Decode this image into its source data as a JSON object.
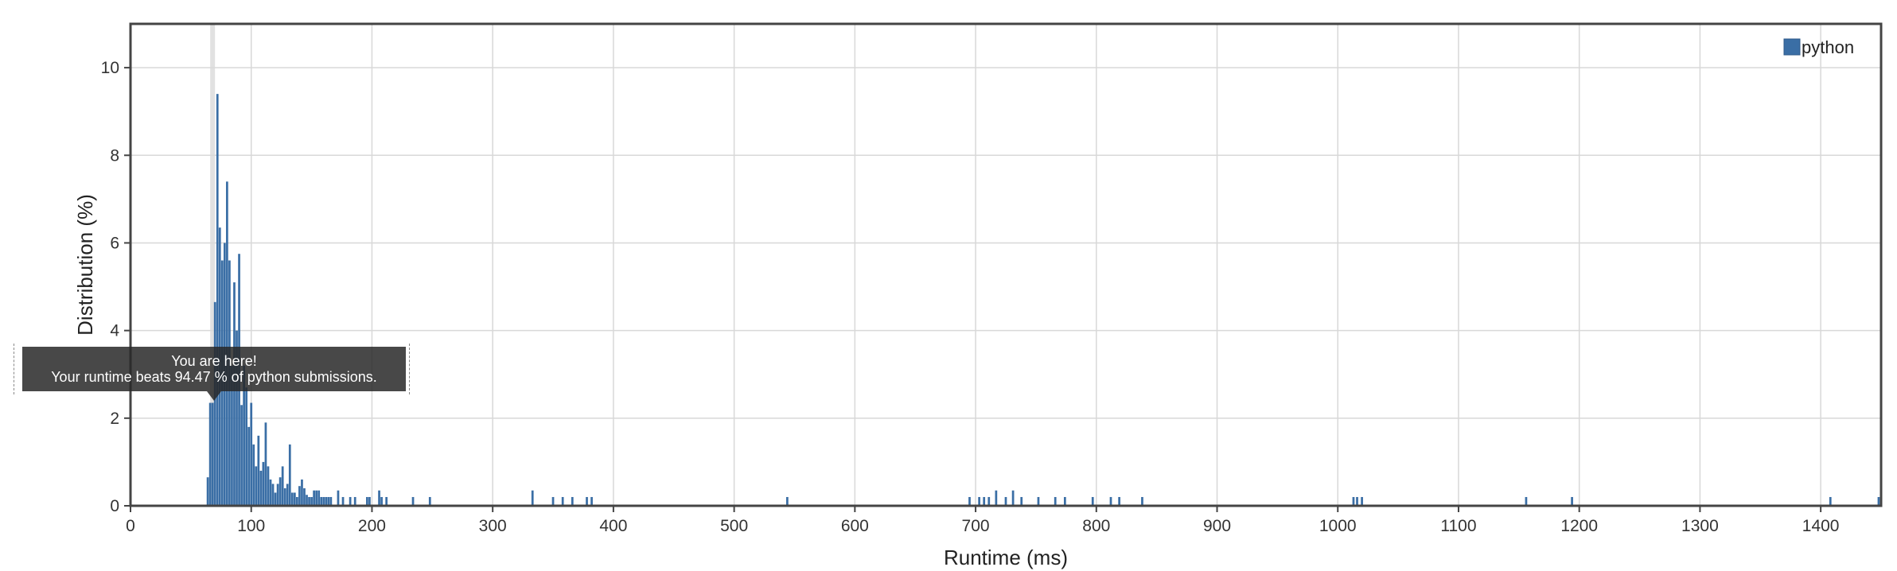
{
  "chart_data": {
    "type": "bar",
    "xlabel": "Runtime (ms)",
    "ylabel": "Distribution (%)",
    "xlim": [
      0,
      1450
    ],
    "ylim": [
      0,
      11
    ],
    "xticks": [
      "0",
      "100",
      "200",
      "300",
      "400",
      "500",
      "600",
      "700",
      "800",
      "900",
      "1000",
      "1100",
      "1200",
      "1300",
      "1400"
    ],
    "yticks": [
      "0",
      "2",
      "4",
      "6",
      "8",
      "10"
    ],
    "grid": true,
    "legend_position": "top-right",
    "series": [
      {
        "name": "python",
        "color": "#3a6ea5",
        "points": [
          [
            64,
            0.65
          ],
          [
            66,
            2.35
          ],
          [
            68,
            2.35
          ],
          [
            70,
            4.65
          ],
          [
            72,
            9.4
          ],
          [
            74,
            6.35
          ],
          [
            76,
            5.6
          ],
          [
            78,
            6.0
          ],
          [
            80,
            7.4
          ],
          [
            82,
            5.6
          ],
          [
            84,
            3.2
          ],
          [
            86,
            5.1
          ],
          [
            88,
            4.0
          ],
          [
            90,
            5.75
          ],
          [
            92,
            2.3
          ],
          [
            94,
            3.2
          ],
          [
            96,
            2.7
          ],
          [
            98,
            1.8
          ],
          [
            100,
            2.35
          ],
          [
            102,
            1.4
          ],
          [
            104,
            0.9
          ],
          [
            106,
            1.6
          ],
          [
            108,
            0.8
          ],
          [
            110,
            1.0
          ],
          [
            112,
            1.9
          ],
          [
            114,
            0.9
          ],
          [
            116,
            0.6
          ],
          [
            118,
            0.5
          ],
          [
            120,
            0.3
          ],
          [
            122,
            0.5
          ],
          [
            124,
            0.65
          ],
          [
            126,
            0.9
          ],
          [
            128,
            0.4
          ],
          [
            130,
            0.5
          ],
          [
            132,
            1.4
          ],
          [
            134,
            0.3
          ],
          [
            136,
            0.3
          ],
          [
            138,
            0.2
          ],
          [
            140,
            0.45
          ],
          [
            142,
            0.6
          ],
          [
            144,
            0.4
          ],
          [
            146,
            0.25
          ],
          [
            148,
            0.2
          ],
          [
            150,
            0.2
          ],
          [
            152,
            0.35
          ],
          [
            154,
            0.35
          ],
          [
            156,
            0.35
          ],
          [
            158,
            0.2
          ],
          [
            160,
            0.2
          ],
          [
            162,
            0.2
          ],
          [
            164,
            0.2
          ],
          [
            166,
            0.2
          ],
          [
            172,
            0.35
          ],
          [
            176,
            0.2
          ],
          [
            182,
            0.2
          ],
          [
            186,
            0.2
          ],
          [
            196,
            0.2
          ],
          [
            198,
            0.2
          ],
          [
            206,
            0.35
          ],
          [
            208,
            0.2
          ],
          [
            212,
            0.2
          ],
          [
            234,
            0.2
          ],
          [
            248,
            0.2
          ],
          [
            333,
            0.35
          ],
          [
            350,
            0.2
          ],
          [
            358,
            0.2
          ],
          [
            366,
            0.2
          ],
          [
            378,
            0.2
          ],
          [
            382,
            0.2
          ],
          [
            544,
            0.2
          ],
          [
            695,
            0.2
          ],
          [
            703,
            0.2
          ],
          [
            707,
            0.2
          ],
          [
            711,
            0.2
          ],
          [
            717,
            0.35
          ],
          [
            725,
            0.2
          ],
          [
            731,
            0.35
          ],
          [
            738,
            0.2
          ],
          [
            752,
            0.2
          ],
          [
            766,
            0.2
          ],
          [
            774,
            0.2
          ],
          [
            797,
            0.2
          ],
          [
            812,
            0.2
          ],
          [
            819,
            0.2
          ],
          [
            838,
            0.2
          ],
          [
            1013,
            0.2
          ],
          [
            1016,
            0.2
          ],
          [
            1020,
            0.2
          ],
          [
            1156,
            0.2
          ],
          [
            1194,
            0.2
          ],
          [
            1408,
            0.2
          ],
          [
            1448,
            0.2
          ]
        ]
      }
    ],
    "highlight_x": 68,
    "annotation": {
      "line1": "You are here!",
      "line2": "Your runtime beats 94.47 % of python submissions."
    }
  }
}
